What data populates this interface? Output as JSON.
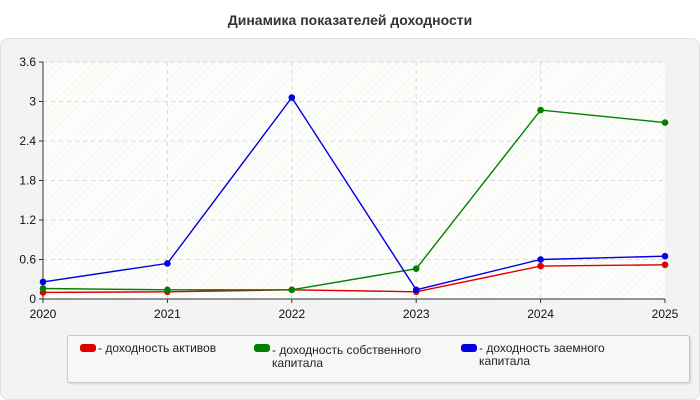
{
  "chart_data": {
    "type": "line",
    "title": "Динамика показателей доходности",
    "x": [
      "2020",
      "2021",
      "2022",
      "2023",
      "2024",
      "2025"
    ],
    "y_ticks": [
      "0",
      "0.6",
      "1.2",
      "1.8",
      "2.4",
      "3",
      "3.6"
    ],
    "ylim": [
      0,
      3.6
    ],
    "grid": true,
    "legend_position": "bottom",
    "series": [
      {
        "name": "- доходность активов",
        "color": "#e00000",
        "values": [
          0.1,
          0.11,
          0.14,
          0.11,
          0.5,
          0.52
        ]
      },
      {
        "name": "- доходность собственного капитала",
        "color": "#008000",
        "values": [
          0.16,
          0.14,
          0.14,
          0.46,
          2.87,
          2.68
        ]
      },
      {
        "name": "- доходность заемного капитала",
        "color": "#0000e0",
        "values": [
          0.26,
          0.54,
          3.06,
          0.14,
          0.6,
          0.65
        ]
      }
    ]
  }
}
